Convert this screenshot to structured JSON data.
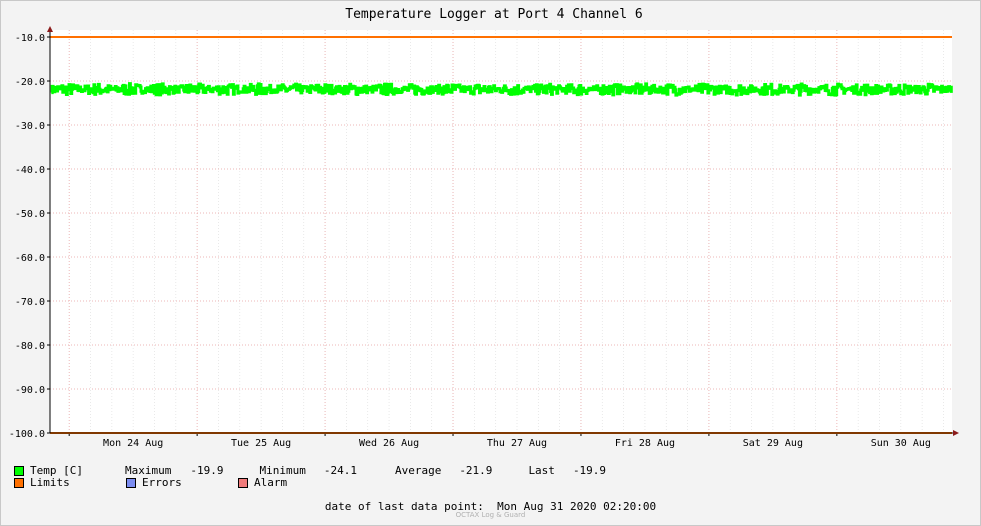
{
  "chart_data": {
    "type": "line",
    "title": "Temperature Logger at Port 4 Channel 6",
    "ylim": [
      -100,
      -10
    ],
    "y_ticks": [
      "-10.0",
      "-20.0",
      "-30.0",
      "-40.0",
      "-50.0",
      "-60.0",
      "-70.0",
      "-80.0",
      "-90.0",
      "-100.0"
    ],
    "x_ticks": [
      "Mon 24 Aug",
      "Tue 25 Aug",
      "Wed 26 Aug",
      "Thu 27 Aug",
      "Fri 28 Aug",
      "Sat 29 Aug",
      "Sun 30 Aug"
    ],
    "xlim_days": [
      23.85,
      30.9
    ],
    "grid": true,
    "series": [
      {
        "name": "Temp [C]",
        "color": "#00ff00",
        "approx_mean": -21.9,
        "approx_range": [
          -24.1,
          -19.9
        ],
        "note_daily_cycle": "fluctuates around -22 with daily oscillation"
      },
      {
        "name": "Limits",
        "color": "#ff7000",
        "values": [
          -10,
          -100
        ]
      }
    ],
    "limits": {
      "upper": -10.0,
      "lower": -100.0,
      "color": "#ff7000"
    }
  },
  "legend": {
    "temp_label": "Temp [C]",
    "maximum_label": "Maximum",
    "maximum_value": "-19.9",
    "minimum_label": "Minimum",
    "minimum_value": "-24.1",
    "average_label": "Average",
    "average_value": "-21.9",
    "last_label": "Last",
    "last_value": "-19.9",
    "limits_label": "Limits",
    "errors_label": "Errors",
    "alarm_label": "Alarm",
    "colors": {
      "temp": "#00ff00",
      "limits": "#ff7000",
      "errors": "#7b8cf0",
      "alarm": "#f07b7b"
    }
  },
  "footer": {
    "last_point_label": "date of last data point:",
    "last_point_value": "Mon Aug 31 2020 02:20:00",
    "watermark": "OCTAX Log & Guard"
  }
}
